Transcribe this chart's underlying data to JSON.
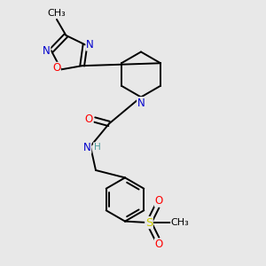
{
  "bg_color": "#e8e8e8",
  "bond_color": "#000000",
  "atom_colors": {
    "N": "#0000cd",
    "O": "#ff0000",
    "S": "#cccc00",
    "C": "#000000",
    "H": "#4a9a9a"
  },
  "font_size": 8.5,
  "lw": 1.4
}
